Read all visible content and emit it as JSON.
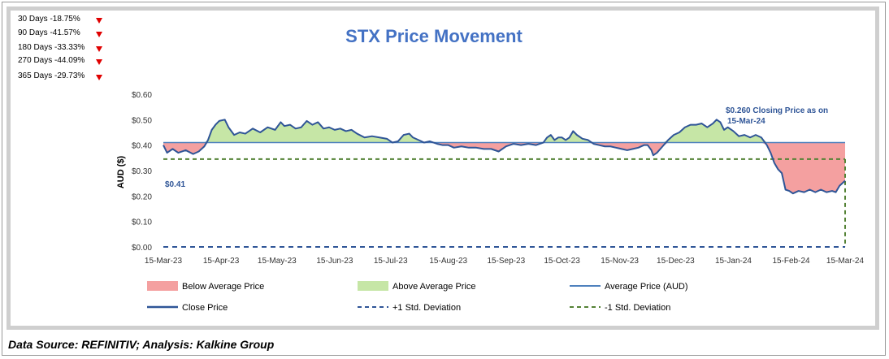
{
  "performance": [
    {
      "label": "30 Days -18.75%",
      "direction": "down"
    },
    {
      "label": "90 Days -41.57%",
      "direction": "down"
    },
    {
      "label": "180 Days -33.33%",
      "direction": "down"
    },
    {
      "label": "270 Days -44.09%",
      "direction": "down"
    },
    {
      "label": "365 Days -29.73%",
      "direction": "down"
    }
  ],
  "source": "Data Source: REFINITIV; Analysis: Kalkine Group",
  "colors": {
    "title": "#4472c4",
    "close": "#2f5597",
    "average": "#4f81bd",
    "below_fill": "#f4a0a0",
    "above_fill": "#c6e6a6",
    "std": "#548235",
    "down_arrow": "#e00000"
  },
  "chart_data": {
    "type": "line",
    "title": "STX Price Movement",
    "ylabel": "AUD ($)",
    "xlabel": "",
    "ylim": [
      0,
      0.6
    ],
    "yticks": [
      "$0.00",
      "$0.10",
      "$0.20",
      "$0.30",
      "$0.40",
      "$0.50",
      "$0.60"
    ],
    "xlim": [
      0,
      366
    ],
    "xticks": [
      {
        "label": "15-Mar-23",
        "t": 0
      },
      {
        "label": "15-Apr-23",
        "t": 31
      },
      {
        "label": "15-May-23",
        "t": 61
      },
      {
        "label": "15-Jun-23",
        "t": 92
      },
      {
        "label": "15-Jul-23",
        "t": 122
      },
      {
        "label": "15-Aug-23",
        "t": 153
      },
      {
        "label": "15-Sep-23",
        "t": 184
      },
      {
        "label": "15-Oct-23",
        "t": 214
      },
      {
        "label": "15-Nov-23",
        "t": 245
      },
      {
        "label": "15-Dec-23",
        "t": 275
      },
      {
        "label": "15-Jan-24",
        "t": 306
      },
      {
        "label": "15-Feb-24",
        "t": 337
      },
      {
        "label": "15-Mar-24",
        "t": 366
      }
    ],
    "average": 0.41,
    "plus_std": 0.0,
    "minus_std": 0.345,
    "close": [
      [
        0,
        0.4
      ],
      [
        2,
        0.37
      ],
      [
        5,
        0.385
      ],
      [
        8,
        0.37
      ],
      [
        12,
        0.38
      ],
      [
        16,
        0.365
      ],
      [
        19,
        0.375
      ],
      [
        22,
        0.395
      ],
      [
        24,
        0.42
      ],
      [
        26,
        0.46
      ],
      [
        28,
        0.48
      ],
      [
        30,
        0.495
      ],
      [
        33,
        0.5
      ],
      [
        35,
        0.47
      ],
      [
        38,
        0.44
      ],
      [
        41,
        0.45
      ],
      [
        44,
        0.445
      ],
      [
        48,
        0.465
      ],
      [
        52,
        0.45
      ],
      [
        56,
        0.47
      ],
      [
        60,
        0.46
      ],
      [
        63,
        0.49
      ],
      [
        65,
        0.475
      ],
      [
        68,
        0.48
      ],
      [
        71,
        0.465
      ],
      [
        74,
        0.47
      ],
      [
        77,
        0.495
      ],
      [
        80,
        0.48
      ],
      [
        83,
        0.49
      ],
      [
        86,
        0.465
      ],
      [
        89,
        0.47
      ],
      [
        92,
        0.46
      ],
      [
        95,
        0.465
      ],
      [
        98,
        0.455
      ],
      [
        101,
        0.46
      ],
      [
        104,
        0.445
      ],
      [
        108,
        0.43
      ],
      [
        112,
        0.435
      ],
      [
        116,
        0.43
      ],
      [
        120,
        0.425
      ],
      [
        123,
        0.41
      ],
      [
        126,
        0.415
      ],
      [
        129,
        0.44
      ],
      [
        132,
        0.445
      ],
      [
        134,
        0.43
      ],
      [
        137,
        0.42
      ],
      [
        140,
        0.41
      ],
      [
        143,
        0.415
      ],
      [
        147,
        0.405
      ],
      [
        150,
        0.4
      ],
      [
        153,
        0.4
      ],
      [
        156,
        0.39
      ],
      [
        160,
        0.395
      ],
      [
        164,
        0.39
      ],
      [
        168,
        0.39
      ],
      [
        172,
        0.385
      ],
      [
        176,
        0.385
      ],
      [
        180,
        0.375
      ],
      [
        184,
        0.395
      ],
      [
        188,
        0.405
      ],
      [
        192,
        0.4
      ],
      [
        196,
        0.405
      ],
      [
        200,
        0.4
      ],
      [
        204,
        0.41
      ],
      [
        206,
        0.43
      ],
      [
        208,
        0.44
      ],
      [
        210,
        0.42
      ],
      [
        212,
        0.43
      ],
      [
        214,
        0.43
      ],
      [
        216,
        0.42
      ],
      [
        218,
        0.43
      ],
      [
        220,
        0.455
      ],
      [
        222,
        0.44
      ],
      [
        225,
        0.425
      ],
      [
        228,
        0.42
      ],
      [
        231,
        0.405
      ],
      [
        234,
        0.4
      ],
      [
        237,
        0.395
      ],
      [
        240,
        0.395
      ],
      [
        243,
        0.39
      ],
      [
        246,
        0.385
      ],
      [
        249,
        0.38
      ],
      [
        252,
        0.385
      ],
      [
        255,
        0.39
      ],
      [
        258,
        0.4
      ],
      [
        260,
        0.4
      ],
      [
        262,
        0.38
      ],
      [
        263,
        0.36
      ],
      [
        265,
        0.37
      ],
      [
        268,
        0.395
      ],
      [
        271,
        0.42
      ],
      [
        274,
        0.44
      ],
      [
        277,
        0.45
      ],
      [
        280,
        0.47
      ],
      [
        283,
        0.48
      ],
      [
        286,
        0.48
      ],
      [
        289,
        0.485
      ],
      [
        292,
        0.47
      ],
      [
        295,
        0.485
      ],
      [
        297,
        0.5
      ],
      [
        299,
        0.49
      ],
      [
        301,
        0.46
      ],
      [
        303,
        0.47
      ],
      [
        306,
        0.455
      ],
      [
        309,
        0.435
      ],
      [
        312,
        0.44
      ],
      [
        315,
        0.43
      ],
      [
        318,
        0.44
      ],
      [
        321,
        0.43
      ],
      [
        324,
        0.4
      ],
      [
        326,
        0.37
      ],
      [
        328,
        0.33
      ],
      [
        330,
        0.305
      ],
      [
        332,
        0.29
      ],
      [
        334,
        0.225
      ],
      [
        336,
        0.22
      ],
      [
        338,
        0.21
      ],
      [
        341,
        0.22
      ],
      [
        344,
        0.215
      ],
      [
        347,
        0.225
      ],
      [
        350,
        0.215
      ],
      [
        353,
        0.225
      ],
      [
        356,
        0.215
      ],
      [
        359,
        0.22
      ],
      [
        361,
        0.215
      ],
      [
        363,
        0.24
      ],
      [
        366,
        0.26
      ]
    ],
    "legend": [
      {
        "key": "below",
        "label": "Below Average Price"
      },
      {
        "key": "above",
        "label": "Above Average Price"
      },
      {
        "key": "avg",
        "label": "Average Price (AUD)"
      },
      {
        "key": "close",
        "label": "Close Price"
      },
      {
        "key": "plus",
        "label": "+1 Std. Deviation"
      },
      {
        "key": "minus",
        "label": "-1 Std. Deviation"
      }
    ],
    "annotations": {
      "start_label": "$0.41",
      "closing_label_line1": "$0.260 Closing Price as on",
      "closing_label_line2": "15-Mar-24"
    }
  }
}
